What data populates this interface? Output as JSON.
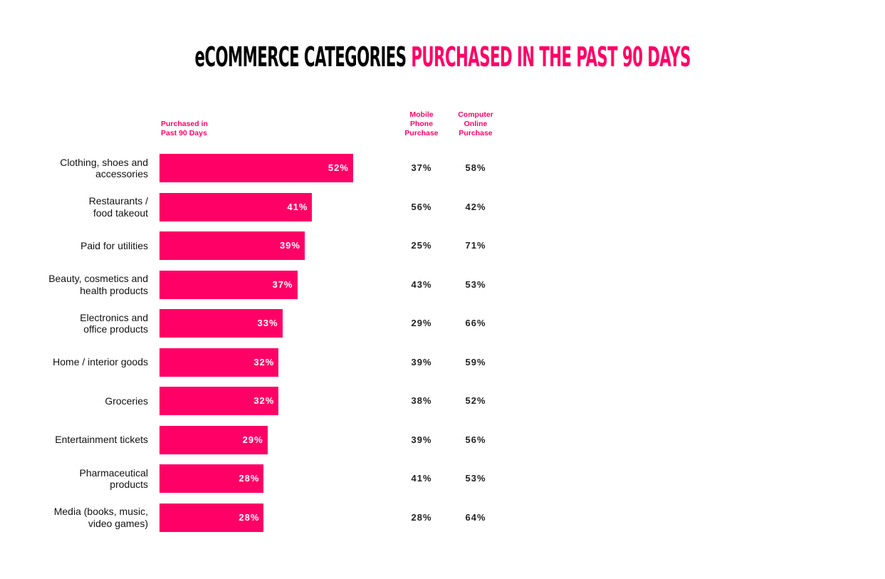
{
  "title": {
    "part1": "eCOMMERCE CATEGORIES",
    "part2": "PURCHASED IN THE PAST 90 DAYS"
  },
  "colors": {
    "accent": "#ff0066",
    "text": "#111111"
  },
  "chart_data": {
    "type": "bar",
    "orientation": "horizontal",
    "headers": {
      "bar": [
        "Purchased in",
        "Past 90 Days"
      ],
      "mobile": [
        "Mobile",
        "Phone",
        "Purchase"
      ],
      "computer": [
        "Computer",
        "Online",
        "Purchase"
      ]
    },
    "categories": [
      [
        "Clothing, shoes and",
        "accessories"
      ],
      [
        "Restaurants /",
        "food takeout"
      ],
      [
        "Paid for utilities"
      ],
      [
        "Beauty, cosmetics and",
        "health products"
      ],
      [
        "Electronics and",
        "office products"
      ],
      [
        "Home / interior goods"
      ],
      [
        "Groceries"
      ],
      [
        "Entertainment tickets"
      ],
      [
        "Pharmaceutical",
        "products"
      ],
      [
        "Media (books, music,",
        "video games)"
      ]
    ],
    "series": [
      {
        "name": "Purchased in Past 90 Days",
        "values": [
          52,
          41,
          39,
          37,
          33,
          32,
          32,
          29,
          28,
          28
        ]
      },
      {
        "name": "Mobile Phone Purchase",
        "values": [
          37,
          56,
          25,
          43,
          29,
          39,
          38,
          39,
          41,
          28
        ]
      },
      {
        "name": "Computer Online Purchase",
        "values": [
          58,
          42,
          71,
          53,
          66,
          59,
          52,
          56,
          53,
          64
        ]
      }
    ],
    "unit": "%"
  }
}
